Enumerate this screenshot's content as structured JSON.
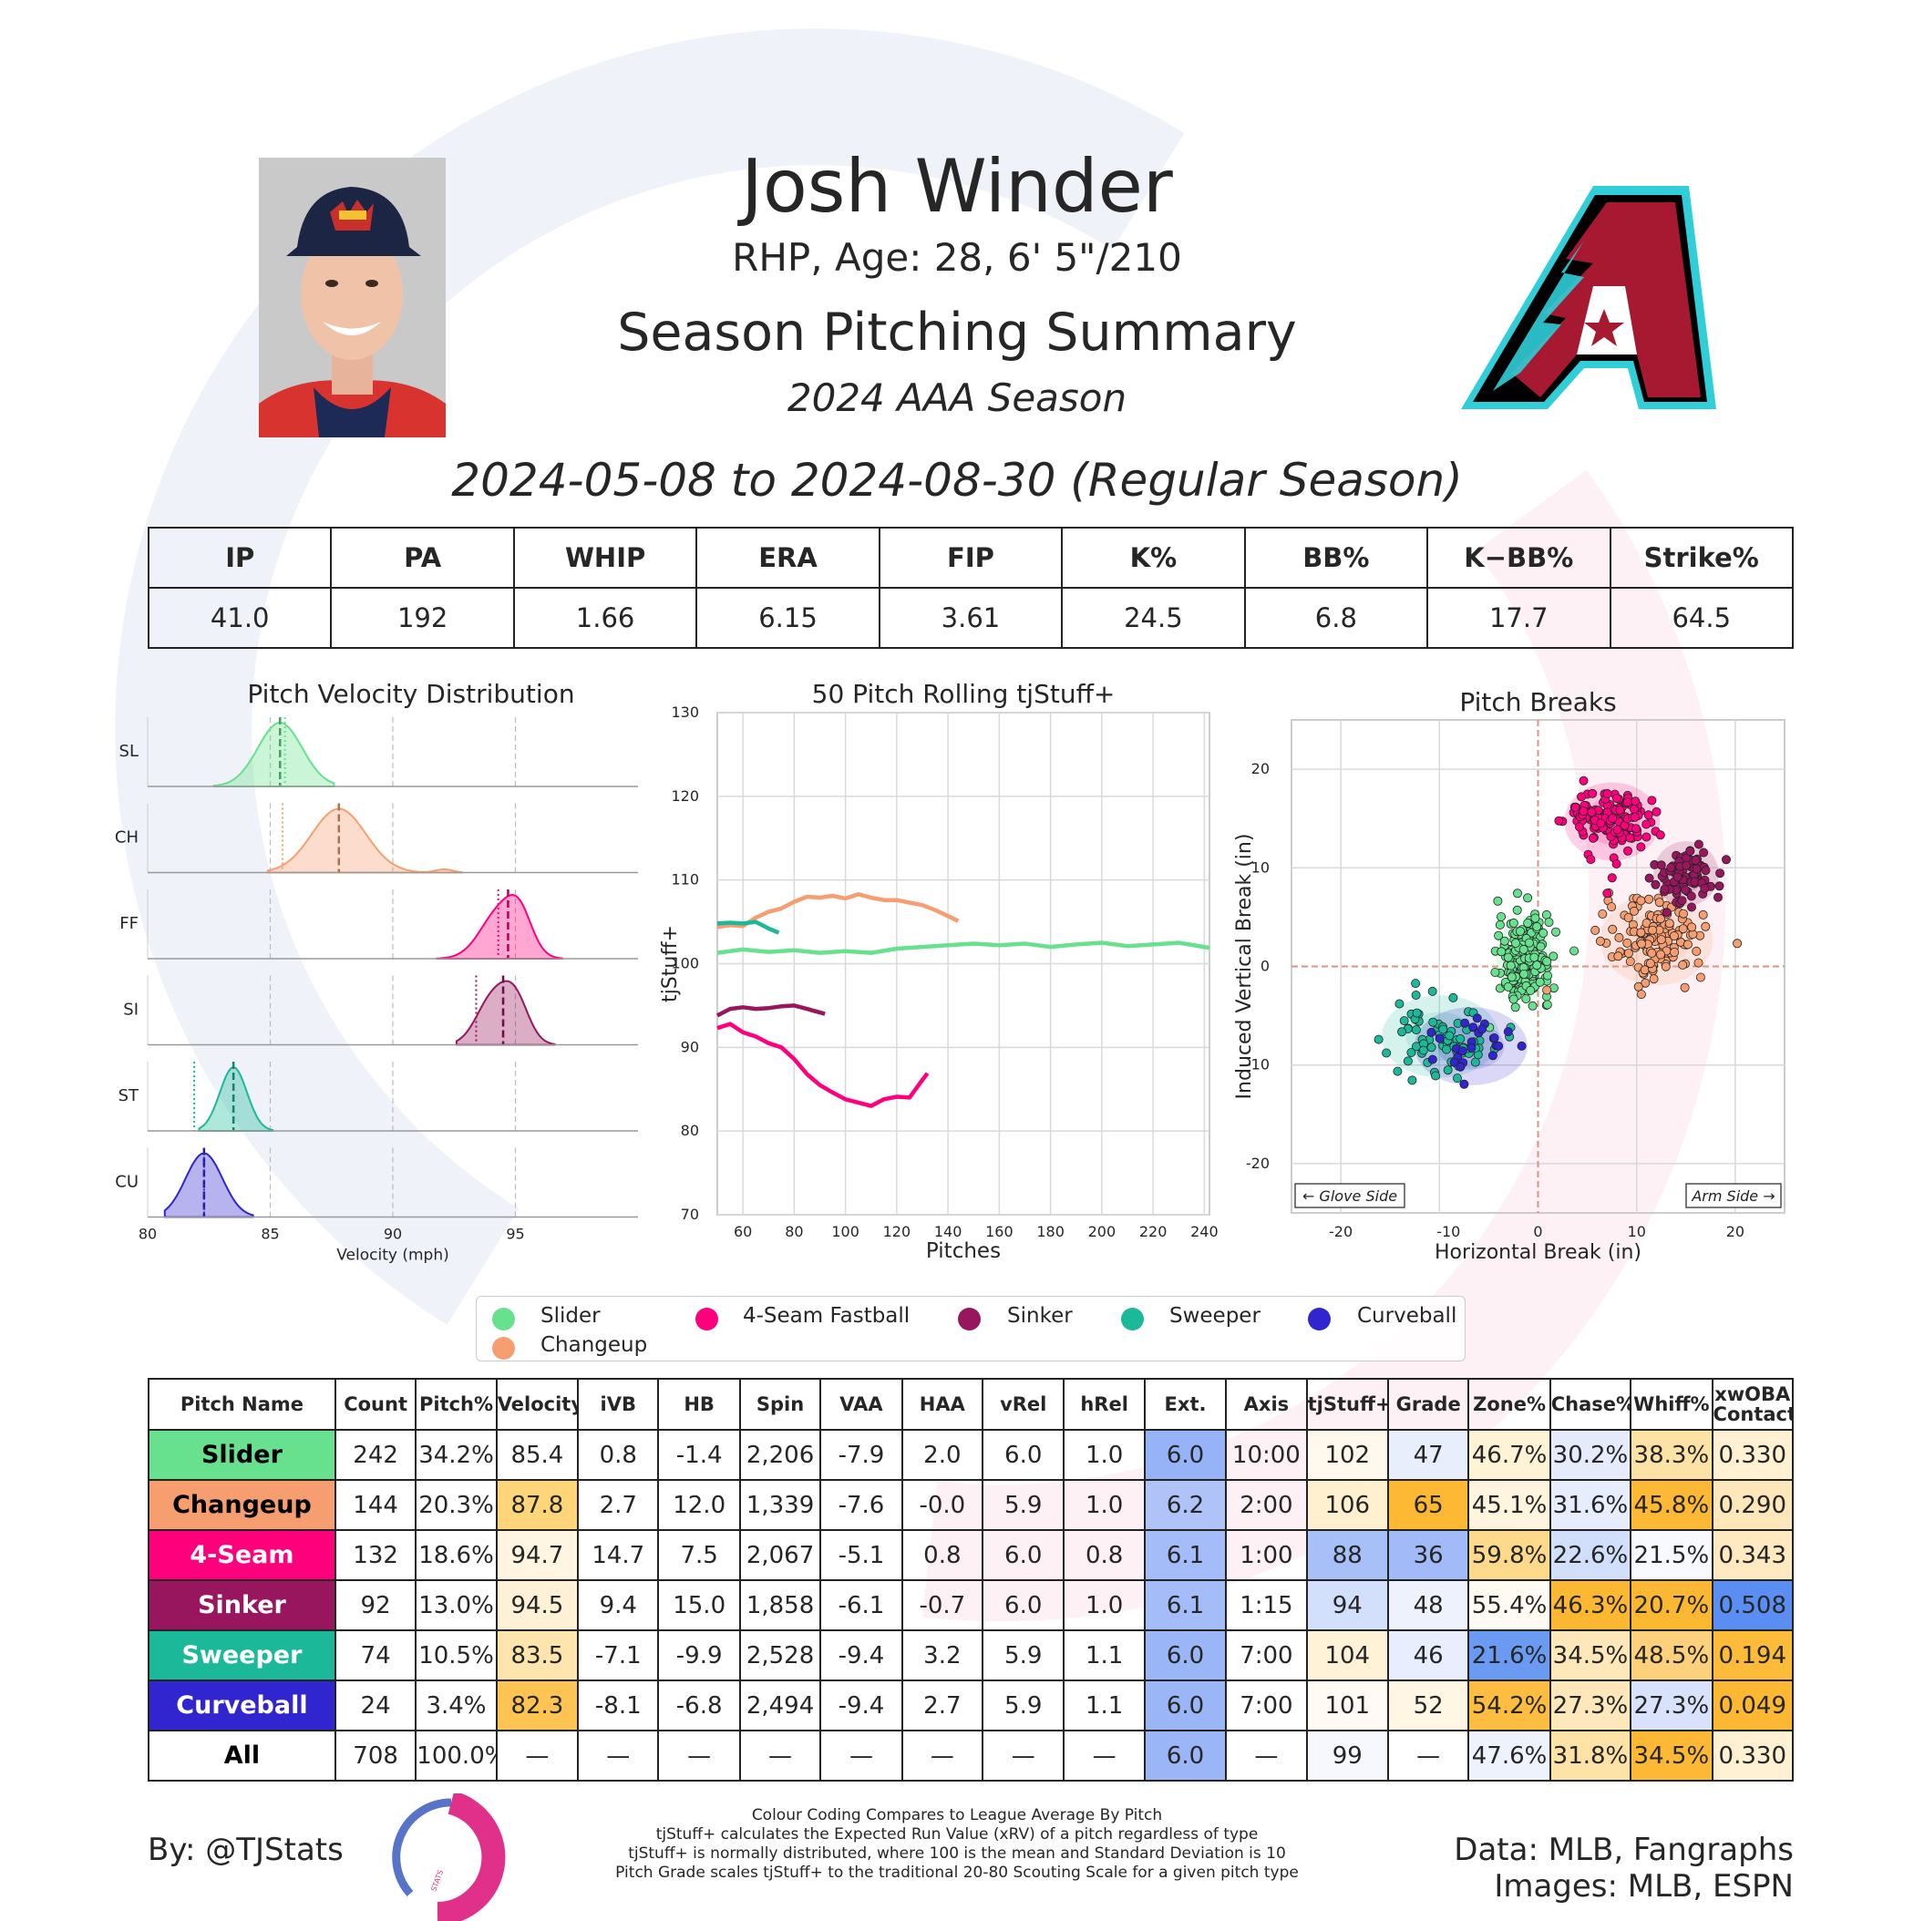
{
  "header": {
    "player_name": "Josh Winder",
    "bio": "RHP, Age: 28, 6' 5\"/210",
    "summary_title": "Season Pitching Summary",
    "season": "2024 AAA Season",
    "date_range": "2024-05-08 to 2024-08-30 (Regular Season)"
  },
  "summary_stats": {
    "headers": [
      "IP",
      "PA",
      "WHIP",
      "ERA",
      "FIP",
      "K%",
      "BB%",
      "K−BB%",
      "Strike%"
    ],
    "values": [
      "41.0",
      "192",
      "1.66",
      "6.15",
      "3.61",
      "24.5",
      "6.8",
      "17.7",
      "64.5"
    ]
  },
  "colors": {
    "Slider": "#67E18D",
    "Changeup": "#F79E70",
    "4-Seam Fastball": "#FF007D",
    "Sinker": "#98165D",
    "Sweeper": "#1BB999",
    "Curveball": "#3025CE",
    "dbacks_red": "#A71930",
    "dbacks_teal": "#30CED8"
  },
  "chart_data": [
    {
      "type": "area",
      "title": "Pitch Velocity Distribution",
      "xlabel": "Velocity (mph)",
      "xlim": [
        80,
        100
      ],
      "xticks": [
        "80",
        "85",
        "90",
        "95"
      ],
      "series": [
        {
          "name": "SL",
          "color": "#67E18D",
          "mean": 85.4,
          "league_avg": 85.6,
          "sd": 0.9,
          "min": 82.7,
          "max": 87.6
        },
        {
          "name": "CH",
          "color": "#F79E70",
          "mean": 87.8,
          "league_avg": 85.5,
          "sd": 1.1,
          "min": 84.9,
          "max": 92.8
        },
        {
          "name": "FF",
          "color": "#FF007D",
          "mean": 94.7,
          "league_avg": 94.3,
          "sd": 0.75,
          "min": 91.8,
          "max": 96.9
        },
        {
          "name": "SI",
          "color": "#98165D",
          "mean": 94.5,
          "league_avg": 93.4,
          "sd": 0.95,
          "min": 92.6,
          "max": 96.6
        },
        {
          "name": "ST",
          "color": "#1BB999",
          "mean": 83.5,
          "league_avg": 81.9,
          "sd": 0.55,
          "min": 82.1,
          "max": 85.1
        },
        {
          "name": "CU",
          "color": "#3025CE",
          "mean": 82.3,
          "league_avg": 82.3,
          "sd": 0.75,
          "min": 80.7,
          "max": 84.3
        }
      ]
    },
    {
      "type": "line",
      "title": "50 Pitch Rolling tjStuff+",
      "xlabel": "Pitches",
      "ylabel": "tjStuff+",
      "xlim": [
        50,
        242
      ],
      "ylim": [
        70,
        130
      ],
      "xticks": [
        "60",
        "80",
        "100",
        "120",
        "140",
        "160",
        "180",
        "200",
        "220",
        "240"
      ],
      "yticks": [
        "70",
        "80",
        "90",
        "100",
        "110",
        "120",
        "130"
      ],
      "series": [
        {
          "name": "Slider",
          "color": "#67E18D",
          "x": [
            50,
            60,
            70,
            80,
            90,
            100,
            110,
            120,
            130,
            140,
            150,
            160,
            170,
            180,
            190,
            200,
            210,
            220,
            230,
            242
          ],
          "y": [
            101.3,
            101.7,
            101.4,
            101.6,
            101.3,
            101.5,
            101.3,
            101.8,
            102.0,
            102.2,
            102.4,
            102.2,
            102.4,
            102.0,
            102.3,
            102.5,
            102.1,
            102.3,
            102.5,
            101.9
          ]
        },
        {
          "name": "Changeup",
          "color": "#F79E70",
          "x": [
            50,
            55,
            60,
            65,
            70,
            75,
            80,
            85,
            90,
            95,
            100,
            105,
            110,
            115,
            120,
            125,
            130,
            135,
            140,
            144
          ],
          "y": [
            104.4,
            104.6,
            104.5,
            105.5,
            106.2,
            106.6,
            107.4,
            108.0,
            107.9,
            108.1,
            107.8,
            108.3,
            107.9,
            107.6,
            107.6,
            107.3,
            107.0,
            106.4,
            105.7,
            105.1
          ]
        },
        {
          "name": "Sweeper",
          "color": "#1BB999",
          "x": [
            50,
            55,
            60,
            65,
            70,
            74
          ],
          "y": [
            104.8,
            104.9,
            104.8,
            105.0,
            104.2,
            103.7
          ]
        },
        {
          "name": "Sinker",
          "color": "#98165D",
          "x": [
            50,
            55,
            60,
            65,
            70,
            75,
            80,
            85,
            92
          ],
          "y": [
            93.8,
            94.6,
            94.8,
            94.6,
            94.7,
            94.9,
            95.0,
            94.6,
            94.0
          ]
        },
        {
          "name": "4-Seam Fastball",
          "color": "#FF007D",
          "x": [
            50,
            55,
            60,
            65,
            70,
            75,
            80,
            85,
            90,
            95,
            100,
            105,
            110,
            115,
            120,
            125,
            130,
            132
          ],
          "y": [
            92.3,
            92.8,
            91.8,
            91.3,
            90.5,
            90.0,
            88.6,
            86.8,
            85.5,
            84.6,
            83.8,
            83.4,
            83.0,
            83.8,
            84.1,
            84.0,
            86.1,
            86.9
          ]
        }
      ]
    },
    {
      "type": "scatter",
      "title": "Pitch Breaks",
      "xlabel": "Horizontal Break (in)",
      "ylabel": "Induced Vertical Break (in)",
      "xlim": [
        -25,
        25
      ],
      "ylim": [
        -25,
        25
      ],
      "xticks": [
        "-20",
        "-10",
        "0",
        "10",
        "20"
      ],
      "yticks": [
        "-20",
        "-10",
        "0",
        "10",
        "20"
      ],
      "annotations": [
        "← Glove Side",
        "Arm Side →"
      ],
      "series": [
        {
          "name": "Slider",
          "color": "#67E18D",
          "cx": -1.4,
          "cy": 0.8,
          "count": 242,
          "sx": 1.3,
          "sy": 2.0
        },
        {
          "name": "Changeup",
          "color": "#F79E70",
          "cx": 12.0,
          "cy": 2.7,
          "count": 144,
          "sx": 2.6,
          "sy": 2.1
        },
        {
          "name": "4-Seam Fastball",
          "color": "#FF007D",
          "cx": 7.5,
          "cy": 14.7,
          "count": 132,
          "sx": 2.2,
          "sy": 1.8
        },
        {
          "name": "Sinker",
          "color": "#98165D",
          "cx": 15.0,
          "cy": 9.4,
          "count": 92,
          "sx": 1.5,
          "sy": 1.5
        },
        {
          "name": "Sweeper",
          "color": "#1BB999",
          "cx": -9.9,
          "cy": -7.1,
          "count": 74,
          "sx": 2.7,
          "sy": 1.9
        },
        {
          "name": "Curveball",
          "color": "#3025CE",
          "cx": -6.8,
          "cy": -8.1,
          "count": 24,
          "sx": 2.6,
          "sy": 1.8
        }
      ]
    }
  ],
  "legend": [
    {
      "label": "Slider",
      "color": "#67E18D"
    },
    {
      "label": "4-Seam Fastball",
      "color": "#FF007D"
    },
    {
      "label": "Sinker",
      "color": "#98165D"
    },
    {
      "label": "Sweeper",
      "color": "#1BB999"
    },
    {
      "label": "Curveball",
      "color": "#3025CE"
    },
    {
      "label": "Changeup",
      "color": "#F79E70"
    }
  ],
  "pitch_table": {
    "headers": [
      "Pitch Name",
      "Count",
      "Pitch%",
      "Velocity",
      "iVB",
      "HB",
      "Spin",
      "VAA",
      "HAA",
      "vRel",
      "hRel",
      "Ext.",
      "Axis",
      "tjStuff+",
      "Grade",
      "Zone%",
      "Chase%",
      "Whiff%",
      "xwOBA\nContact"
    ],
    "rows": [
      {
        "name": "Slider",
        "bg": "#67E18D",
        "fg": "#000000",
        "cells": [
          "242",
          "34.2%",
          "85.4",
          "0.8",
          "-1.4",
          "2,206",
          "-7.9",
          "2.0",
          "6.0",
          "1.0",
          "6.0",
          "10:00",
          "102",
          "47",
          "46.7%",
          "30.2%",
          "38.3%",
          "0.330"
        ],
        "cell_colors": [
          "",
          "",
          "#ffffff",
          "",
          "",
          "",
          "",
          "",
          "",
          "",
          "#96b3f7",
          "",
          "#fff8ec",
          "#e9eefc",
          "#fff3d6",
          "#e5ebfb",
          "#fde2a6",
          "#fff1d1"
        ]
      },
      {
        "name": "Changeup",
        "bg": "#F79E70",
        "fg": "#000000",
        "cells": [
          "144",
          "20.3%",
          "87.8",
          "2.7",
          "12.0",
          "1,339",
          "-7.6",
          "-0.0",
          "5.9",
          "1.0",
          "6.2",
          "2:00",
          "106",
          "65",
          "45.1%",
          "31.6%",
          "45.8%",
          "0.290"
        ],
        "cell_colors": [
          "",
          "",
          "#fed679",
          "",
          "",
          "",
          "",
          "",
          "",
          "",
          "#afc3f8",
          "",
          "#fff0d0",
          "#fdb933",
          "#fff4dd",
          "#e6edfc",
          "#fdb835",
          "#fde7bb"
        ]
      },
      {
        "name": "4-Seam",
        "bg": "#FF007D",
        "fg": "#ffffff",
        "cells": [
          "132",
          "18.6%",
          "94.7",
          "14.7",
          "7.5",
          "2,067",
          "-5.1",
          "0.8",
          "6.0",
          "0.8",
          "6.1",
          "1:00",
          "88",
          "36",
          "59.8%",
          "22.6%",
          "21.5%",
          "0.343"
        ],
        "cell_colors": [
          "",
          "",
          "#fff5e1",
          "",
          "",
          "",
          "",
          "",
          "",
          "",
          "#a4bcf8",
          "",
          "#a8c0f8",
          "#a2bbf8",
          "#fdd98c",
          "#d2dffb",
          "#f8f9fe",
          "#fee9c0"
        ]
      },
      {
        "name": "Sinker",
        "bg": "#98165D",
        "fg": "#ffffff",
        "cells": [
          "92",
          "13.0%",
          "94.5",
          "9.4",
          "15.0",
          "1,858",
          "-6.1",
          "-0.7",
          "6.0",
          "1.0",
          "6.1",
          "1:15",
          "94",
          "48",
          "55.4%",
          "46.3%",
          "20.7%",
          "0.508"
        ],
        "cell_colors": [
          "",
          "",
          "#fff1d5",
          "",
          "",
          "",
          "",
          "",
          "",
          "",
          "#a4bcf8",
          "",
          "#d3e0fc",
          "#eef2fd",
          "#fffaf2",
          "#fdb833",
          "#fdb833",
          "#5b8ef2"
        ]
      },
      {
        "name": "Sweeper",
        "bg": "#1BB999",
        "fg": "#ffffff",
        "cells": [
          "74",
          "10.5%",
          "83.5",
          "-7.1",
          "-9.9",
          "2,528",
          "-9.4",
          "3.2",
          "5.9",
          "1.1",
          "6.0",
          "7:00",
          "104",
          "46",
          "21.6%",
          "34.5%",
          "48.5%",
          "0.194"
        ],
        "cell_colors": [
          "",
          "",
          "#fee4ad",
          "",
          "",
          "",
          "",
          "",
          "",
          "",
          "#9ab6f7",
          "",
          "#fff2d7",
          "#e8eefd",
          "#6b9af3",
          "#fee7b8",
          "#fdd07b",
          "#fdbb3a"
        ]
      },
      {
        "name": "Curveball",
        "bg": "#3025CE",
        "fg": "#ffffff",
        "cells": [
          "24",
          "3.4%",
          "82.3",
          "-8.1",
          "-6.8",
          "2,494",
          "-9.4",
          "2.7",
          "5.9",
          "1.1",
          "6.0",
          "7:00",
          "101",
          "52",
          "54.2%",
          "27.3%",
          "27.3%",
          "0.049"
        ],
        "cell_colors": [
          "",
          "",
          "#fdc454",
          "",
          "",
          "",
          "",
          "",
          "",
          "",
          "#9ab6f7",
          "",
          "#fffaf3",
          "#fff6e4",
          "#fdbd40",
          "#fee7ba",
          "#d9e2fb",
          "#fdb833"
        ]
      },
      {
        "name": "All",
        "bg": "#ffffff",
        "fg": "#000000",
        "cells": [
          "708",
          "100.0%",
          "—",
          "—",
          "—",
          "—",
          "—",
          "—",
          "—",
          "—",
          "6.0",
          "—",
          "99",
          "—",
          "47.6%",
          "31.8%",
          "34.5%",
          "0.330"
        ],
        "cell_colors": [
          "",
          "",
          "",
          "",
          "",
          "",
          "",
          "",
          "",
          "",
          "#9ab6f7",
          "",
          "#f6f8fe",
          "",
          "#eef2fd",
          "#fee2a6",
          "#fdb935",
          "#fff1d1"
        ]
      }
    ]
  },
  "footer": {
    "byline": "By: @TJStats",
    "sources_line1": "Data: MLB, Fangraphs",
    "sources_line2": "Images: MLB, ESPN",
    "notes": [
      "Colour Coding Compares to League Average By Pitch",
      "tjStuff+ calculates the Expected Run Value (xRV) of a pitch regardless of type",
      "tjStuff+ is normally distributed, where 100 is the mean and Standard Deviation is 10",
      "Pitch Grade scales tjStuff+ to the traditional 20-80 Scouting Scale for a given pitch type"
    ],
    "logo_text": "STATS"
  }
}
